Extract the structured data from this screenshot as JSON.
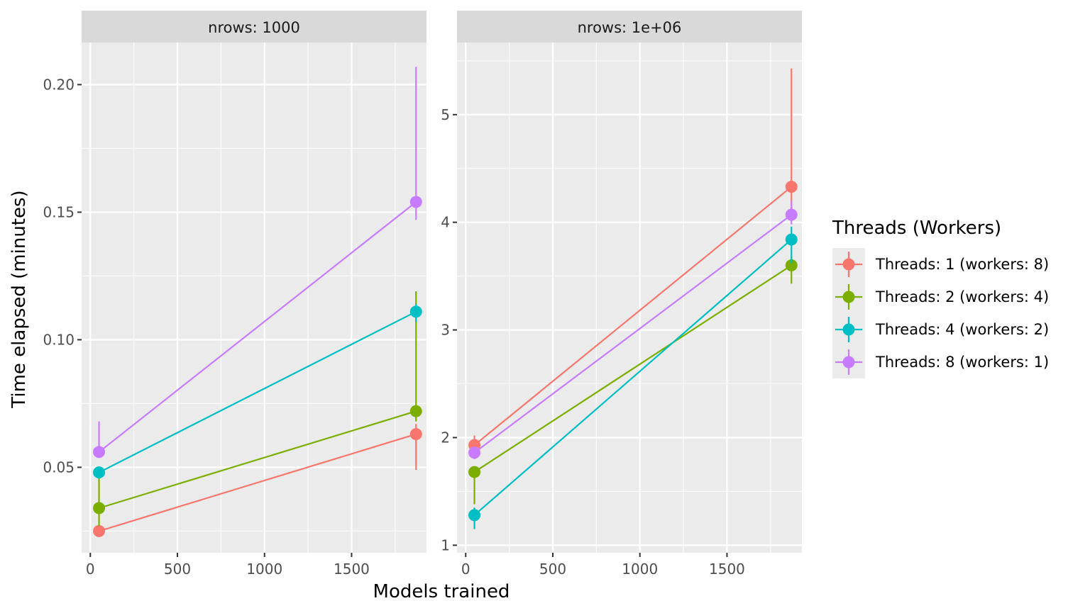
{
  "chart_data": {
    "type": "line",
    "xlabel": "Models trained",
    "ylabel": "Time elapsed (minutes)",
    "legend": {
      "title": "Threads (Workers)",
      "placement": "right"
    },
    "colors": {
      "Threads: 1 (workers: 8)": "#F8766D",
      "Threads: 2 (workers: 4)": "#7CAE00",
      "Threads: 4 (workers: 2)": "#00BFC4",
      "Threads: 8 (workers: 1)": "#C77CFF"
    },
    "panels": [
      {
        "strip": "nrows: 1000",
        "xlim": [
          -50,
          1930
        ],
        "ylim": [
          0.0165,
          0.2165
        ],
        "x_ticks": [
          0,
          500,
          1000,
          1500
        ],
        "x_tick_labels": [
          "0",
          "500",
          "1000",
          "1500"
        ],
        "y_ticks": [
          0.05,
          0.1,
          0.15,
          0.2
        ],
        "y_tick_labels": [
          "0.05",
          "0.10",
          "0.15",
          "0.20"
        ],
        "series": [
          {
            "name": "Threads: 1 (workers: 8)",
            "points": [
              {
                "x": 50,
                "y": 0.025,
                "lo": 0.024,
                "hi": 0.026
              },
              {
                "x": 1870,
                "y": 0.063,
                "lo": 0.049,
                "hi": 0.067
              }
            ]
          },
          {
            "name": "Threads: 2 (workers: 4)",
            "points": [
              {
                "x": 50,
                "y": 0.034,
                "lo": 0.027,
                "hi": 0.048
              },
              {
                "x": 1870,
                "y": 0.072,
                "lo": 0.068,
                "hi": 0.119
              }
            ]
          },
          {
            "name": "Threads: 4 (workers: 2)",
            "points": [
              {
                "x": 50,
                "y": 0.048,
                "lo": 0.046,
                "hi": 0.049
              },
              {
                "x": 1870,
                "y": 0.111,
                "lo": 0.107,
                "hi": 0.114
              }
            ]
          },
          {
            "name": "Threads: 8 (workers: 1)",
            "points": [
              {
                "x": 50,
                "y": 0.056,
                "lo": 0.054,
                "hi": 0.068
              },
              {
                "x": 1870,
                "y": 0.154,
                "lo": 0.147,
                "hi": 0.207
              }
            ]
          }
        ]
      },
      {
        "strip": "nrows: 1e+06",
        "xlim": [
          -50,
          1930
        ],
        "ylim": [
          0.93,
          5.67
        ],
        "x_ticks": [
          0,
          500,
          1000,
          1500
        ],
        "x_tick_labels": [
          "0",
          "500",
          "1000",
          "1500"
        ],
        "y_ticks": [
          1,
          2,
          3,
          4,
          5
        ],
        "y_tick_labels": [
          "1",
          "2",
          "3",
          "4",
          "5"
        ],
        "series": [
          {
            "name": "Threads: 1 (workers: 8)",
            "points": [
              {
                "x": 50,
                "y": 1.93,
                "lo": 1.89,
                "hi": 2.02
              },
              {
                "x": 1870,
                "y": 4.33,
                "lo": 4.08,
                "hi": 5.43
              }
            ]
          },
          {
            "name": "Threads: 2 (workers: 4)",
            "points": [
              {
                "x": 50,
                "y": 1.68,
                "lo": 1.38,
                "hi": 1.73
              },
              {
                "x": 1870,
                "y": 3.6,
                "lo": 3.43,
                "hi": 3.68
              }
            ]
          },
          {
            "name": "Threads: 4 (workers: 2)",
            "points": [
              {
                "x": 50,
                "y": 1.28,
                "lo": 1.15,
                "hi": 1.35
              },
              {
                "x": 1870,
                "y": 3.84,
                "lo": 3.62,
                "hi": 3.96
              }
            ]
          },
          {
            "name": "Threads: 8 (workers: 1)",
            "points": [
              {
                "x": 50,
                "y": 1.86,
                "lo": 1.8,
                "hi": 1.9
              },
              {
                "x": 1870,
                "y": 4.07,
                "lo": 3.98,
                "hi": 4.2
              }
            ]
          }
        ]
      }
    ]
  }
}
